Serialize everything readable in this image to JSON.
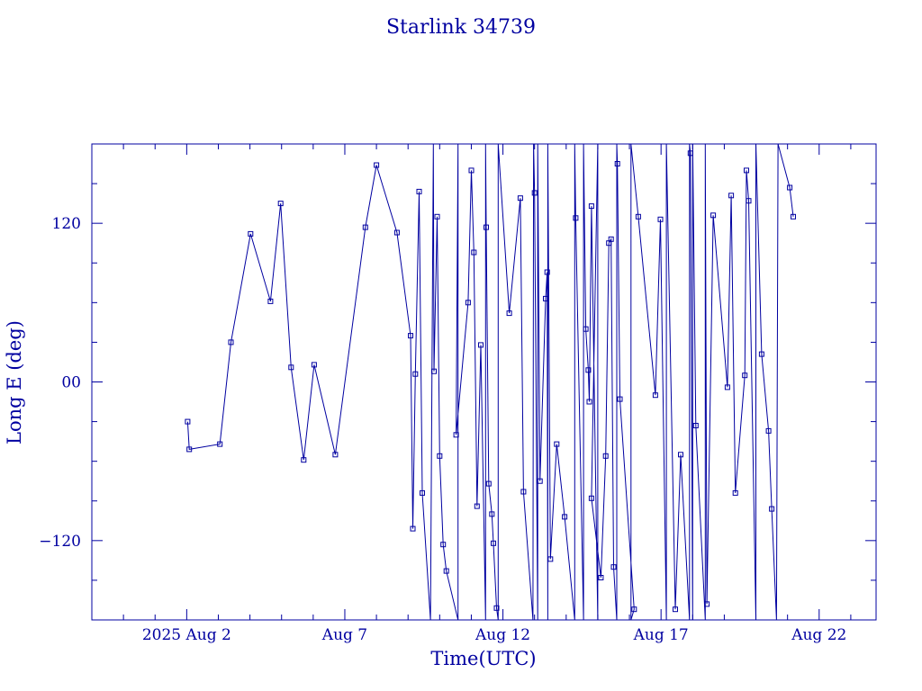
{
  "chart_data": {
    "type": "line",
    "title": "Starlink 34739",
    "xlabel": "Time(UTC)",
    "ylabel": "Long E (deg)",
    "x_unit": "days, 2025 Aug",
    "xlim": [
      29.0,
      53.8
    ],
    "ylim": [
      -180,
      180
    ],
    "x_ticks": [
      {
        "value": 32,
        "label": "2025 Aug  2"
      },
      {
        "value": 37,
        "label": "Aug  7"
      },
      {
        "value": 42,
        "label": "Aug 12"
      },
      {
        "value": 47,
        "label": "Aug 17"
      },
      {
        "value": 52,
        "label": "Aug 22"
      }
    ],
    "y_ticks": [
      {
        "value": 120,
        "label": "120"
      },
      {
        "value": 0,
        "label": "00"
      },
      {
        "value": -120,
        "label": "−120"
      }
    ],
    "grid": false,
    "colors": {
      "line": "#0000a0",
      "marker": "#0000a0"
    },
    "series": [
      {
        "marker": "square",
        "points": [
          [
            32.03,
            -30
          ],
          [
            32.08,
            -51
          ],
          [
            33.05,
            -47
          ],
          [
            33.4,
            30
          ],
          [
            34.02,
            112
          ],
          [
            34.65,
            61
          ],
          [
            34.97,
            135
          ],
          [
            35.3,
            11
          ],
          [
            35.7,
            -59
          ],
          [
            36.03,
            13
          ],
          [
            36.7,
            -55
          ],
          [
            37.65,
            117
          ],
          [
            38.0,
            164
          ],
          [
            38.65,
            113
          ],
          [
            39.08,
            35
          ],
          [
            39.15,
            -111
          ],
          [
            39.23,
            6
          ],
          [
            39.35,
            144
          ],
          [
            39.45,
            -84
          ],
          [
            39.71,
            -180
          ],
          [
            39.8,
            180
          ],
          [
            39.82,
            8
          ],
          [
            39.92,
            125
          ],
          [
            40.0,
            -56
          ],
          [
            40.11,
            -123
          ],
          [
            40.21,
            -143
          ],
          [
            40.58,
            -180
          ],
          [
            40.58,
            180
          ],
          [
            40.52,
            -40
          ],
          [
            40.9,
            60
          ],
          [
            41.0,
            160
          ],
          [
            41.08,
            98
          ],
          [
            41.18,
            -94
          ],
          [
            41.3,
            28
          ],
          [
            41.45,
            -180
          ],
          [
            41.45,
            180
          ],
          [
            41.47,
            117
          ],
          [
            41.55,
            -77
          ],
          [
            41.65,
            -100
          ],
          [
            41.7,
            -122
          ],
          [
            41.8,
            -171
          ],
          [
            41.85,
            -180
          ],
          [
            41.85,
            180
          ],
          [
            42.2,
            52
          ],
          [
            42.55,
            139
          ],
          [
            42.65,
            -83
          ],
          [
            42.95,
            -180
          ],
          [
            42.97,
            180
          ],
          [
            43.0,
            143
          ],
          [
            43.1,
            -180
          ],
          [
            43.1,
            180
          ],
          [
            43.17,
            -75
          ],
          [
            43.35,
            63
          ],
          [
            43.4,
            83
          ],
          [
            43.42,
            -180
          ],
          [
            43.42,
            180
          ],
          [
            43.5,
            -134
          ],
          [
            43.7,
            -47
          ],
          [
            43.95,
            -102
          ],
          [
            44.27,
            -180
          ],
          [
            44.27,
            180
          ],
          [
            44.3,
            124
          ],
          [
            44.55,
            -180
          ],
          [
            44.55,
            180
          ],
          [
            44.62,
            40
          ],
          [
            44.7,
            9
          ],
          [
            44.73,
            -15
          ],
          [
            44.8,
            133
          ],
          [
            45.0,
            -180
          ],
          [
            45.0,
            180
          ],
          [
            44.8,
            -88
          ],
          [
            45.1,
            -148
          ],
          [
            45.25,
            -56
          ],
          [
            45.35,
            105
          ],
          [
            45.42,
            108
          ],
          [
            45.5,
            -140
          ],
          [
            45.6,
            -180
          ],
          [
            45.6,
            180
          ],
          [
            45.62,
            165
          ],
          [
            45.7,
            -13
          ],
          [
            46.15,
            -172
          ],
          [
            46.05,
            -180
          ],
          [
            46.05,
            180
          ],
          [
            46.28,
            125
          ],
          [
            46.82,
            -10
          ],
          [
            46.98,
            123
          ],
          [
            47.17,
            -180
          ],
          [
            47.17,
            180
          ],
          [
            47.45,
            -172
          ],
          [
            47.62,
            -55
          ],
          [
            47.9,
            -180
          ],
          [
            47.9,
            180
          ],
          [
            47.93,
            173
          ],
          [
            48.0,
            -180
          ],
          [
            48.0,
            180
          ],
          [
            48.1,
            -33
          ],
          [
            48.4,
            -180
          ],
          [
            48.4,
            180
          ],
          [
            48.45,
            -168
          ],
          [
            48.65,
            126
          ],
          [
            49.1,
            -4
          ],
          [
            49.22,
            141
          ],
          [
            49.35,
            -84
          ],
          [
            49.65,
            5
          ],
          [
            49.7,
            160
          ],
          [
            49.77,
            137
          ],
          [
            50.0,
            -180
          ],
          [
            50.0,
            180
          ],
          [
            50.18,
            21
          ],
          [
            50.4,
            -37
          ],
          [
            50.5,
            -96
          ],
          [
            50.65,
            -180
          ],
          [
            50.7,
            180
          ],
          [
            51.07,
            147
          ],
          [
            51.18,
            125
          ]
        ]
      }
    ]
  }
}
